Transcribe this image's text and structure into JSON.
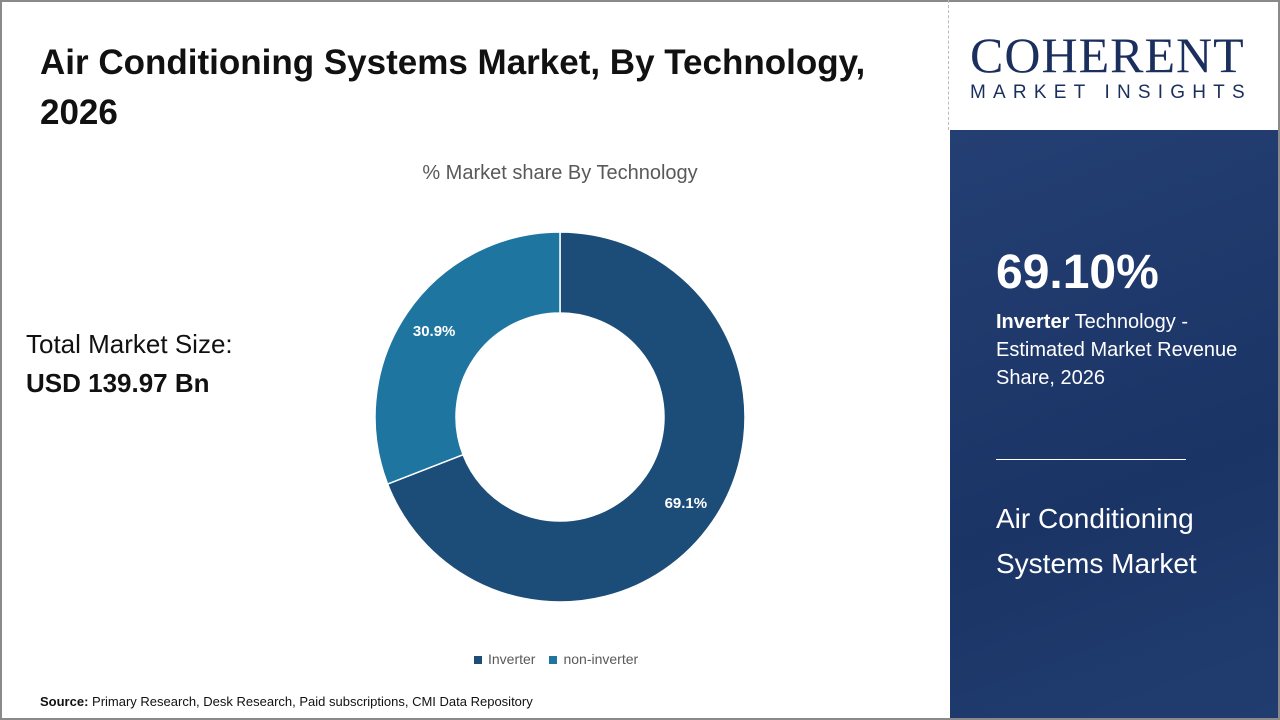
{
  "title": "Air Conditioning Systems Market, By Technology, 2026",
  "total": {
    "label": "Total Market Size:",
    "value": "USD 139.97 Bn"
  },
  "source": {
    "label": "Source:",
    "text": "Primary Research, Desk Research, Paid subscriptions, CMI Data Repository"
  },
  "logo": {
    "word": "COHERENT",
    "tagline": "MARKET INSIGHTS"
  },
  "panel": {
    "percent": "69.10%",
    "highlight": "Inverter",
    "desc": "Technology - Estimated Market Revenue Share, 2026",
    "market": "Air Conditioning Systems Market"
  },
  "chart_data": {
    "type": "pie",
    "donut": true,
    "title": "% Market share By Technology",
    "categories": [
      "Inverter",
      "non-inverter"
    ],
    "values": [
      69.1,
      30.9
    ],
    "labels": [
      "69.1%",
      "30.9%"
    ],
    "colors": [
      "#1b4d78",
      "#1d75a0"
    ],
    "legend": "bottom"
  }
}
